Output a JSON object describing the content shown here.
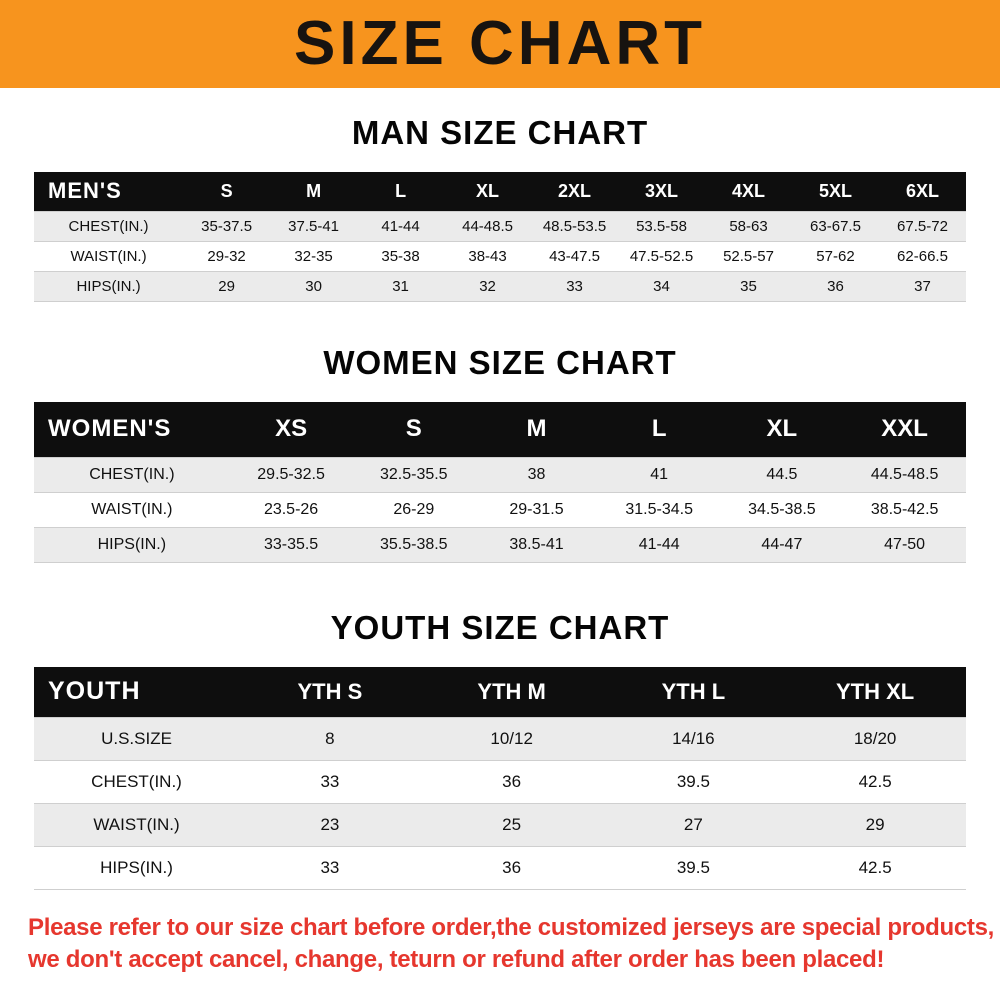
{
  "banner": {
    "title": "SIZE CHART",
    "bg_color": "#F7941E",
    "text_color": "#171310"
  },
  "colors": {
    "table_header_bg": "#0e0e0e",
    "table_header_text": "#ffffff",
    "row_stripe": "#ebebeb",
    "footer_text": "#E6372E"
  },
  "chart_data": [
    {
      "type": "table",
      "title": "MAN SIZE CHART",
      "header": [
        "MEN'S",
        "S",
        "M",
        "L",
        "XL",
        "2XL",
        "3XL",
        "4XL",
        "5XL",
        "6XL"
      ],
      "rows": [
        [
          "CHEST(IN.)",
          "35-37.5",
          "37.5-41",
          "41-44",
          "44-48.5",
          "48.5-53.5",
          "53.5-58",
          "58-63",
          "63-67.5",
          "67.5-72"
        ],
        [
          "WAIST(IN.)",
          "29-32",
          "32-35",
          "35-38",
          "38-43",
          "43-47.5",
          "47.5-52.5",
          "52.5-57",
          "57-62",
          "62-66.5"
        ],
        [
          "HIPS(IN.)",
          "29",
          "30",
          "31",
          "32",
          "33",
          "34",
          "35",
          "36",
          "37"
        ]
      ]
    },
    {
      "type": "table",
      "title": "WOMEN SIZE CHART",
      "header": [
        "WOMEN'S",
        "XS",
        "S",
        "M",
        "L",
        "XL",
        "XXL"
      ],
      "rows": [
        [
          "CHEST(IN.)",
          "29.5-32.5",
          "32.5-35.5",
          "38",
          "41",
          "44.5",
          "44.5-48.5"
        ],
        [
          "WAIST(IN.)",
          "23.5-26",
          "26-29",
          "29-31.5",
          "31.5-34.5",
          "34.5-38.5",
          "38.5-42.5"
        ],
        [
          "HIPS(IN.)",
          "33-35.5",
          "35.5-38.5",
          "38.5-41",
          "41-44",
          "44-47",
          "47-50"
        ]
      ]
    },
    {
      "type": "table",
      "title": "YOUTH SIZE CHART",
      "header": [
        "YOUTH",
        "YTH S",
        "YTH M",
        "YTH L",
        "YTH XL"
      ],
      "rows": [
        [
          "U.S.SIZE",
          "8",
          "10/12",
          "14/16",
          "18/20"
        ],
        [
          "CHEST(IN.)",
          "33",
          "36",
          "39.5",
          "42.5"
        ],
        [
          "WAIST(IN.)",
          "23",
          "25",
          "27",
          "29"
        ],
        [
          "HIPS(IN.)",
          "33",
          "36",
          "39.5",
          "42.5"
        ]
      ]
    }
  ],
  "footer": {
    "lines": [
      "Please refer to our size chart before order,the customized jerseys are special products,",
      "we don't accept cancel, change, teturn or refund after order has been placed!"
    ]
  }
}
